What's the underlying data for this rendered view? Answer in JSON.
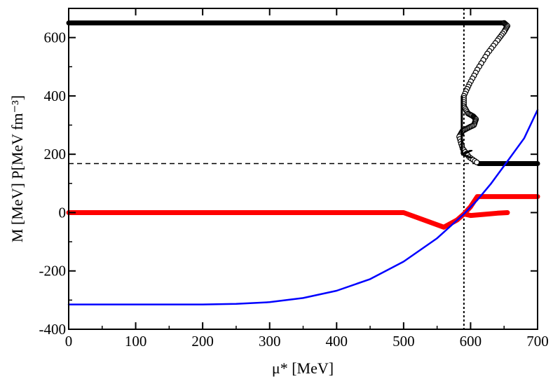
{
  "chart_data": {
    "type": "line",
    "xlabel": "μ* [MeV]",
    "ylabel": "M [MeV]   P[MeV fm⁻³]",
    "xlim": [
      0,
      700
    ],
    "ylim": [
      -400,
      700
    ],
    "x_ticks": [
      "0",
      "100",
      "200",
      "300",
      "400",
      "500",
      "600",
      "700"
    ],
    "y_ticks": [
      "-400",
      "-200",
      "0",
      "200",
      "400",
      "600"
    ],
    "grid": false,
    "legend": "none",
    "reference_lines": {
      "horizontal_dashed_y": 168,
      "vertical_dotted_x": 590
    },
    "series": [
      {
        "color": "#000000",
        "style": "thick-line-with-open-circles",
        "x": [
          0,
          100,
          200,
          300,
          400,
          500,
          600,
          650,
          655,
          650,
          640,
          625,
          610,
          598,
          590,
          590,
          596,
          604,
          608,
          605,
          596,
          588,
          583,
          588,
          598,
          612,
          650,
          700
        ],
        "y": [
          650,
          650,
          650,
          650,
          650,
          650,
          650,
          650,
          640,
          620,
          590,
          545,
          490,
          440,
          400,
          365,
          340,
          330,
          320,
          300,
          290,
          280,
          260,
          220,
          190,
          168,
          168,
          168
        ]
      },
      {
        "color": "#ff0000",
        "style": "thick-line",
        "x": [
          0,
          100,
          200,
          300,
          400,
          500,
          560,
          580,
          590,
          600,
          610,
          650,
          700
        ],
        "y": [
          0,
          0,
          0,
          0,
          0,
          0,
          -50,
          -25,
          -5,
          20,
          55,
          55,
          55
        ]
      },
      {
        "color": "#ff0000",
        "style": "thick-line",
        "x": [
          590,
          600,
          620,
          640,
          655
        ],
        "y": [
          -5,
          -10,
          -6,
          -2,
          0
        ]
      },
      {
        "color": "#0000ff",
        "style": "thin-line",
        "x": [
          0,
          100,
          200,
          250,
          300,
          350,
          400,
          450,
          500,
          550,
          590,
          610,
          630,
          650,
          680,
          700
        ],
        "y": [
          -315,
          -315,
          -315,
          -313,
          -307,
          -293,
          -268,
          -228,
          -168,
          -88,
          -5,
          43,
          98,
          160,
          255,
          352
        ]
      }
    ],
    "annotation_arrow": {
      "x": [
        590,
        590
      ],
      "y": [
        400,
        200
      ]
    }
  }
}
